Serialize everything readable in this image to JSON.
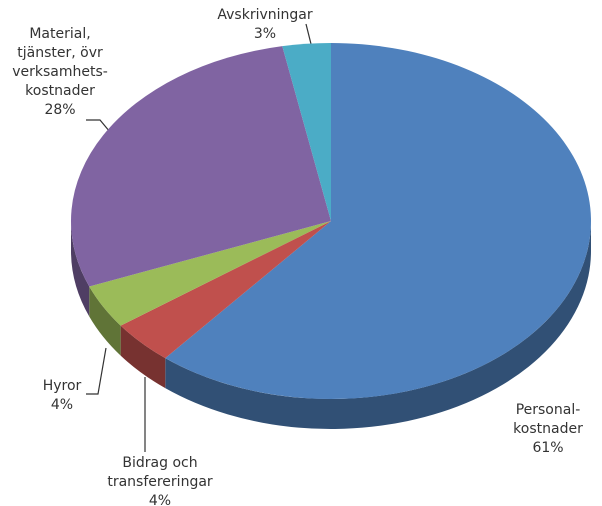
{
  "chart_data": {
    "type": "pie3d",
    "categories": [
      "Personal-\nkostnader",
      "Bidrag och\ntransfereringar",
      "Hyror",
      "Material,\ntjänster, övr\nverksamhets-\nkostnader",
      "Avskrivningar"
    ],
    "values": [
      61,
      4,
      4,
      28,
      3
    ],
    "value_labels": [
      "61%",
      "4%",
      "4%",
      "28%",
      "3%"
    ],
    "colors": [
      "#4f81bd",
      "#c0504d",
      "#9bbb59",
      "#8064a2",
      "#4bacc6"
    ]
  }
}
